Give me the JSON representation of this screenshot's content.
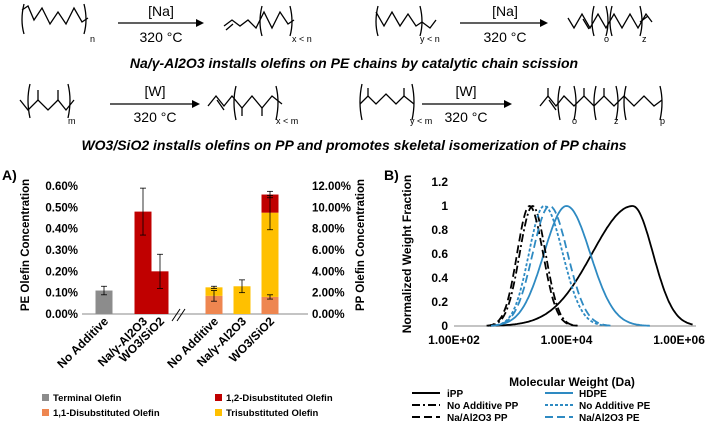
{
  "schemes": {
    "row1": {
      "left": {
        "catalyst": "[Na]",
        "temp": "320 °C",
        "start_sub": "n",
        "product_sub": "x < n"
      },
      "right": {
        "catalyst": "[Na]",
        "temp": "320 °C",
        "start_sub": "y < n",
        "product_sub_o": "o",
        "product_sub_z": "z"
      },
      "caption": "Na/γ-Al2O3 installs olefins on PE chains by catalytic chain scission"
    },
    "row2": {
      "left": {
        "catalyst": "[W]",
        "temp": "320 °C",
        "start_sub": "m",
        "product_sub": "x < m"
      },
      "right": {
        "catalyst": "[W]",
        "temp": "320 °C",
        "start_sub": "y < m",
        "product_sub_o": "o",
        "product_sub_z": "z",
        "product_sub_p": "p"
      },
      "caption": "WO3/SiO2 installs olefins on PP and promotes skeletal isomerization of PP chains"
    }
  },
  "colors": {
    "terminal": "#8c8c8c",
    "disub12": "#c00000",
    "disub11": "#ee8650",
    "trisub": "#ffc000",
    "hdpe": "#2e8ac2",
    "black": "#000000"
  },
  "panelA": {
    "label": "A)",
    "ylabel_left": "PE Olefin Concentration",
    "ylabel_right": "PP Olefin Concentration",
    "left_ticks": [
      "0.00%",
      "0.10%",
      "0.20%",
      "0.30%",
      "0.40%",
      "0.50%",
      "0.60%"
    ],
    "right_ticks": [
      "0.00%",
      "2.00%",
      "4.00%",
      "6.00%",
      "8.00%",
      "10.00%",
      "12.00%"
    ],
    "categories": [
      "No Additive",
      "Na/γ-Al2O3",
      "WO3/SiO2",
      "No Additive",
      "Na/γ-Al2O3",
      "WO3/SiO2"
    ],
    "legend": [
      "Terminal Olefin",
      "1,2-Disubstituted Olefin",
      "1,1-Disubstituted Olefin",
      "Trisubstituted Olefin"
    ]
  },
  "panelB": {
    "label": "B)",
    "ylabel": "Normalized Weight Fraction",
    "xlabel": "Molecular Weight (Da)",
    "y_ticks": [
      "0",
      "0.2",
      "0.4",
      "0.6",
      "0.8",
      "1",
      "1.2"
    ],
    "x_ticks": [
      "1.00E+02",
      "1.00E+04",
      "1.00E+06"
    ],
    "legend": [
      "iPP",
      "HDPE",
      "No Additive PP",
      "No Additive PE",
      "Na/Al2O3 PP",
      "Na/Al2O3 PE"
    ]
  },
  "chart_data": [
    {
      "type": "bar",
      "title": "",
      "ylabel": "PE Olefin Concentration",
      "ylim": [
        0,
        0.6
      ],
      "categories": [
        "No Additive",
        "Na/γ-Al2O3",
        "WO3/SiO2"
      ],
      "series": [
        {
          "name": "Terminal Olefin",
          "values": [
            0.11,
            0,
            0
          ],
          "errors": [
            0.02,
            0,
            0
          ]
        },
        {
          "name": "1,2-Disubstituted Olefin",
          "values": [
            0,
            0.48,
            0.2
          ],
          "errors": [
            0,
            0.11,
            0.08
          ]
        }
      ]
    },
    {
      "type": "bar",
      "title": "",
      "ylabel": "PP Olefin Concentration",
      "ylim": [
        0,
        12
      ],
      "categories": [
        "No Additive",
        "Na/γ-Al2O3",
        "WO3/SiO2"
      ],
      "series": [
        {
          "name": "1,1-Disubstituted Olefin",
          "values": [
            1.7,
            0.0,
            1.6
          ],
          "errors": [
            0.5,
            0.2,
            0.2
          ]
        },
        {
          "name": "Trisubstituted Olefin",
          "values": [
            0.8,
            2.6,
            7.9
          ],
          "errors": [
            0.1,
            0.6,
            1.6
          ]
        },
        {
          "name": "1,2-Disubstituted Olefin",
          "values": [
            0,
            0,
            1.7
          ],
          "errors": [
            0,
            0,
            0.3
          ]
        }
      ]
    },
    {
      "type": "line",
      "title": "",
      "xlabel": "Molecular Weight (Da)",
      "ylabel": "Normalized Weight Fraction",
      "xscale": "log",
      "xlim": [
        100,
        2000000
      ],
      "ylim": [
        0,
        1.2
      ],
      "series": [
        {
          "name": "iPP",
          "peak": 150000,
          "sigma_left": 0.72,
          "sigma_right": 0.36
        },
        {
          "name": "HDPE",
          "peak": 10000,
          "sigma_left": 0.4,
          "sigma_right": 0.42
        },
        {
          "name": "No Additive PP",
          "peak": 2500,
          "sigma_left": 0.23,
          "sigma_right": 0.23
        },
        {
          "name": "No Additive PE",
          "peak": 4000,
          "sigma_left": 0.27,
          "sigma_right": 0.33
        },
        {
          "name": "Na/Al2O3 PP",
          "peak": 2200,
          "sigma_left": 0.22,
          "sigma_right": 0.24
        },
        {
          "name": "Na/Al2O3 PE",
          "peak": 5000,
          "sigma_left": 0.3,
          "sigma_right": 0.32
        }
      ]
    }
  ]
}
